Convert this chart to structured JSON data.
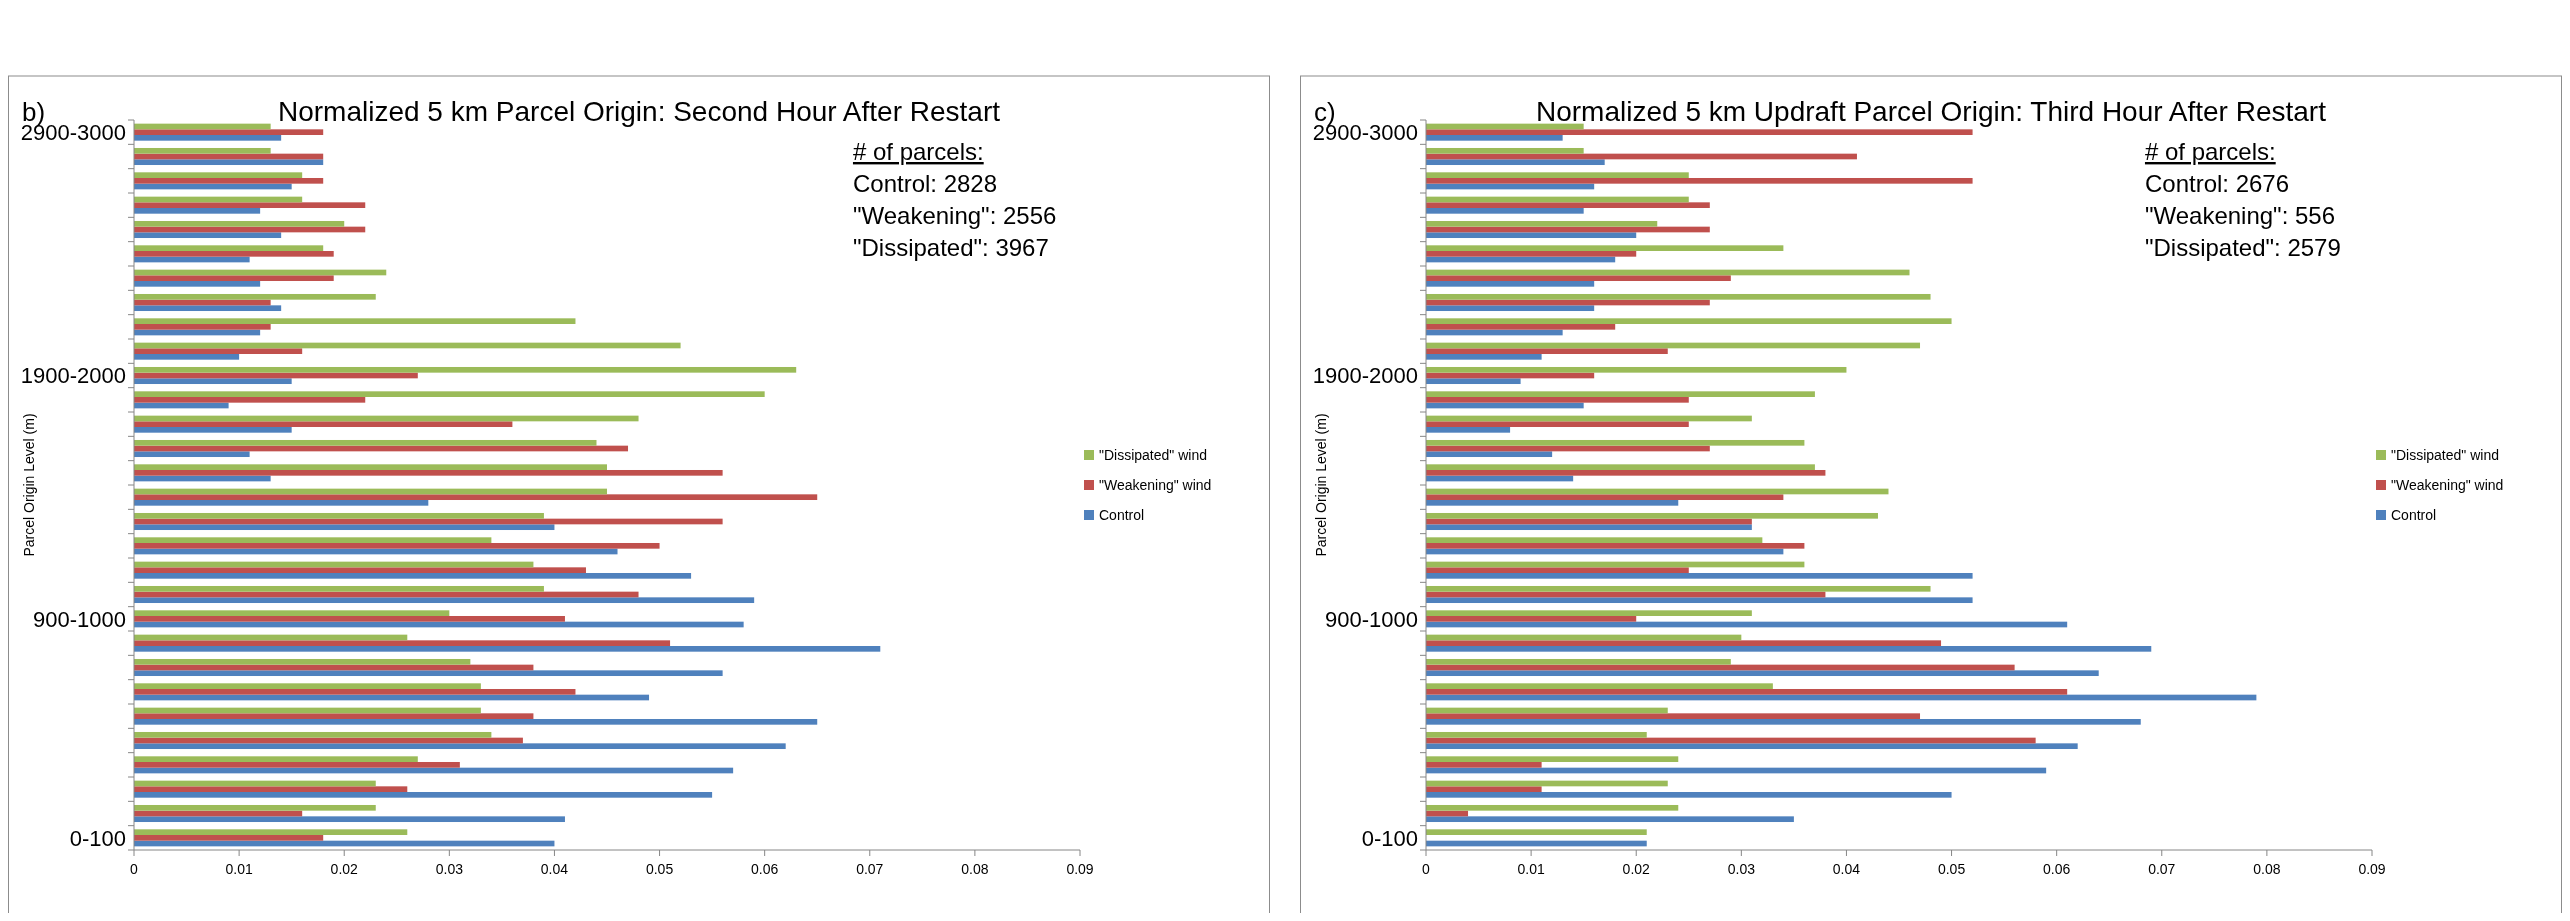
{
  "chart_data": [
    {
      "type": "bar",
      "orientation": "horizontal",
      "title": "Normalized 5 km Parcel Origin: Second Hour After Restart",
      "ylabel": "Parcel Origin Level (m)",
      "annotations": [
        "b)",
        "# of parcels:",
        "Control: 2828",
        "\"Weakening\": 2556",
        "\"Dissipated\": 3967"
      ],
      "categories": [
        "2900-3000",
        null,
        null,
        null,
        null,
        null,
        null,
        null,
        null,
        null,
        "1900-2000",
        null,
        null,
        null,
        null,
        null,
        null,
        null,
        null,
        null,
        "900-1000",
        null,
        null,
        null,
        null,
        null,
        null,
        null,
        null,
        "0-100"
      ],
      "series": [
        {
          "name": "Control",
          "color": "#4f81bd",
          "values": [
            0.014,
            0.018,
            0.015,
            0.012,
            0.014,
            0.011,
            0.012,
            0.014,
            0.012,
            0.01,
            0.015,
            0.009,
            0.015,
            0.011,
            0.013,
            0.028,
            0.04,
            0.046,
            0.053,
            0.059,
            0.058,
            0.071,
            0.056,
            0.049,
            0.065,
            0.062,
            0.057,
            0.055,
            0.041,
            0.04
          ]
        },
        {
          "name": "\"Weakening\" wind",
          "color": "#c0504d",
          "values": [
            0.018,
            0.018,
            0.018,
            0.022,
            0.022,
            0.019,
            0.019,
            0.013,
            0.013,
            0.016,
            0.027,
            0.022,
            0.036,
            0.047,
            0.056,
            0.065,
            0.056,
            0.05,
            0.043,
            0.048,
            0.041,
            0.051,
            0.038,
            0.042,
            0.038,
            0.037,
            0.031,
            0.026,
            0.016,
            0.018
          ]
        },
        {
          "name": "\"Dissipated\" wind",
          "color": "#9bbb59",
          "values": [
            0.013,
            0.013,
            0.016,
            0.016,
            0.02,
            0.018,
            0.024,
            0.023,
            0.042,
            0.052,
            0.063,
            0.06,
            0.048,
            0.044,
            0.045,
            0.045,
            0.039,
            0.034,
            0.038,
            0.039,
            0.03,
            0.026,
            0.032,
            0.033,
            0.033,
            0.034,
            0.027,
            0.023,
            0.023,
            0.026
          ]
        }
      ],
      "xlim": [
        0,
        0.09
      ],
      "xticks": [
        0,
        0.01,
        0.02,
        0.03,
        0.04,
        0.05,
        0.06,
        0.07,
        0.08,
        0.09
      ],
      "legend": "right"
    },
    {
      "type": "bar",
      "orientation": "horizontal",
      "title": "Normalized 5 km Updraft Parcel Origin: Third Hour After Restart",
      "ylabel": "Parcel Origin Level (m)",
      "annotations": [
        "c)",
        "# of parcels:",
        "Control: 2676",
        "\"Weakening\": 556",
        "\"Dissipated\": 2579"
      ],
      "categories": [
        "2900-3000",
        null,
        null,
        null,
        null,
        null,
        null,
        null,
        null,
        null,
        "1900-2000",
        null,
        null,
        null,
        null,
        null,
        null,
        null,
        null,
        null,
        "900-1000",
        null,
        null,
        null,
        null,
        null,
        null,
        null,
        null,
        "0-100"
      ],
      "series": [
        {
          "name": "Control",
          "color": "#4f81bd",
          "values": [
            0.013,
            0.017,
            0.016,
            0.015,
            0.02,
            0.018,
            0.016,
            0.016,
            0.013,
            0.011,
            0.009,
            0.015,
            0.008,
            0.012,
            0.014,
            0.024,
            0.031,
            0.034,
            0.052,
            0.052,
            0.061,
            0.069,
            0.064,
            0.079,
            0.068,
            0.062,
            0.059,
            0.05,
            0.035,
            0.021
          ]
        },
        {
          "name": "\"Weakening\" wind",
          "color": "#c0504d",
          "values": [
            0.052,
            0.041,
            0.052,
            0.027,
            0.027,
            0.02,
            0.029,
            0.027,
            0.018,
            0.023,
            0.016,
            0.025,
            0.025,
            0.027,
            0.038,
            0.034,
            0.031,
            0.036,
            0.025,
            0.038,
            0.02,
            0.049,
            0.056,
            0.061,
            0.047,
            0.058,
            0.011,
            0.011,
            0.004,
            0
          ]
        },
        {
          "name": "\"Dissipated\" wind",
          "color": "#9bbb59",
          "values": [
            0.015,
            0.015,
            0.025,
            0.025,
            0.022,
            0.034,
            0.046,
            0.048,
            0.05,
            0.047,
            0.04,
            0.037,
            0.031,
            0.036,
            0.037,
            0.044,
            0.043,
            0.032,
            0.036,
            0.048,
            0.031,
            0.03,
            0.029,
            0.033,
            0.023,
            0.021,
            0.024,
            0.023,
            0.024,
            0.021
          ]
        }
      ],
      "xlim": [
        0,
        0.09
      ],
      "xticks": [
        0,
        0.01,
        0.02,
        0.03,
        0.04,
        0.05,
        0.06,
        0.07,
        0.08,
        0.09
      ],
      "legend": "right"
    }
  ]
}
